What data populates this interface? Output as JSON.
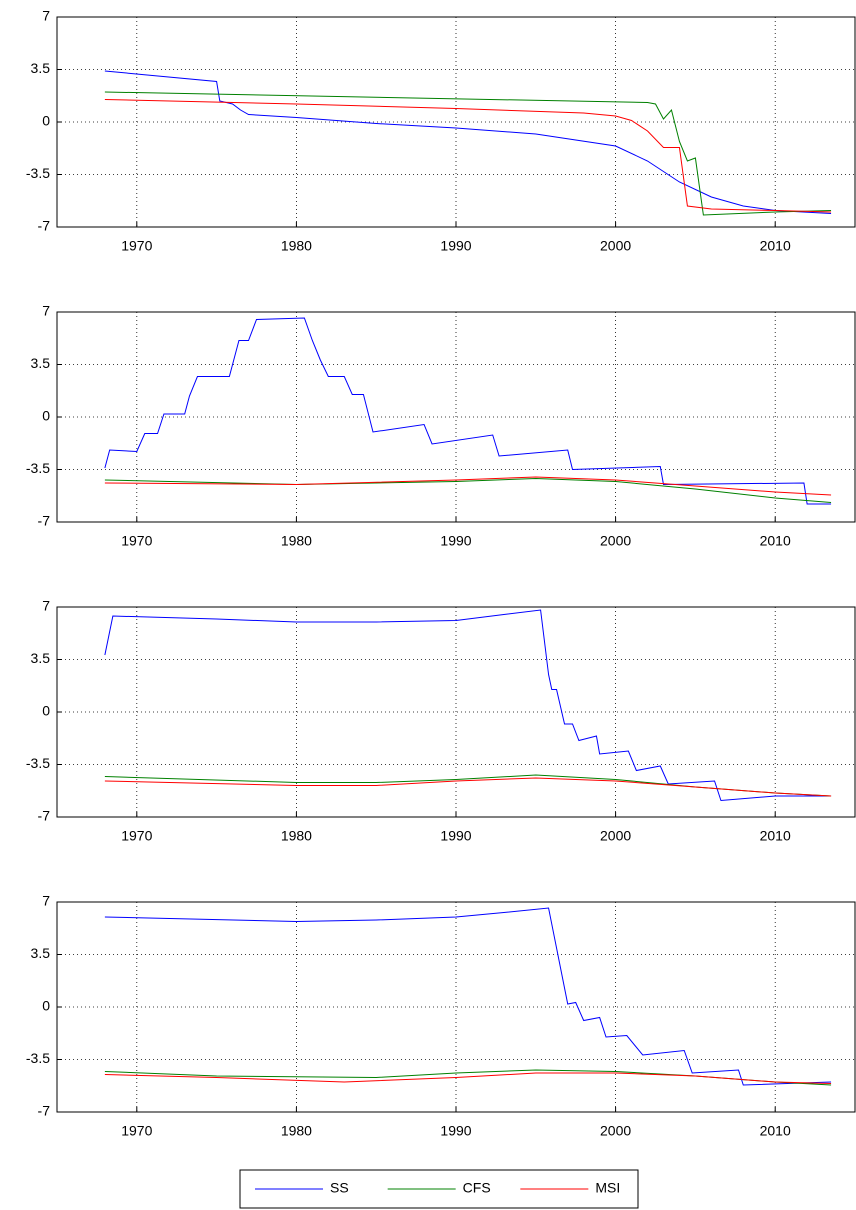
{
  "chart_data": [
    {
      "type": "line",
      "xlim": [
        1965,
        2015
      ],
      "xticks": [
        1970,
        1980,
        1990,
        2000,
        2010
      ],
      "ylim": [
        -7,
        7
      ],
      "yticks": [
        -7,
        -3.5,
        0,
        3.5,
        7
      ],
      "grid": true,
      "series": [
        {
          "name": "SS",
          "color": "#0000ff",
          "x": [
            1968,
            1975,
            1975.2,
            1976,
            1976.5,
            1977,
            1980,
            1985,
            1990,
            1995,
            2000,
            2002,
            2004,
            2006,
            2008,
            2010,
            2013.5
          ],
          "values": [
            3.4,
            2.7,
            1.4,
            1.2,
            0.8,
            0.5,
            0.3,
            -0.1,
            -0.4,
            -0.8,
            -1.6,
            -2.6,
            -4.0,
            -5.0,
            -5.6,
            -5.9,
            -6.1
          ]
        },
        {
          "name": "CFS",
          "color": "#008000",
          "x": [
            1968,
            2002,
            2002.5,
            2003,
            2003.5,
            2004,
            2004.5,
            2005,
            2005.5,
            2010,
            2013.5
          ],
          "values": [
            2.0,
            1.3,
            1.2,
            0.2,
            0.8,
            -1.3,
            -2.6,
            -2.4,
            -6.2,
            -6.0,
            -5.9
          ]
        },
        {
          "name": "MSI",
          "color": "#ff0000",
          "x": [
            1968,
            1980,
            1990,
            1998,
            2000,
            2001,
            2002,
            2003,
            2004,
            2004.5,
            2006,
            2010,
            2013.5
          ],
          "values": [
            1.5,
            1.2,
            0.9,
            0.6,
            0.4,
            0.1,
            -0.6,
            -1.7,
            -1.7,
            -5.6,
            -5.8,
            -5.9,
            -6.0
          ]
        }
      ]
    },
    {
      "type": "line",
      "xlim": [
        1965,
        2015
      ],
      "xticks": [
        1970,
        1980,
        1990,
        2000,
        2010
      ],
      "ylim": [
        -7,
        7
      ],
      "yticks": [
        -7,
        -3.5,
        0,
        3.5,
        7
      ],
      "grid": true,
      "series": [
        {
          "color": "#0000ff",
          "x": [
            1968,
            1968.3,
            1970,
            1970.5,
            1971.3,
            1971.7,
            1973,
            1973.3,
            1973.8,
            1975.8,
            1976.4,
            1977,
            1977.5,
            1980.5,
            1981,
            1981.5,
            1982,
            1983,
            1983.5,
            1984.2,
            1984.8,
            1988,
            1988.5,
            1992.3,
            1992.7,
            1997,
            1997.3,
            2002.8,
            2003,
            2011.8,
            2012,
            2013.5
          ],
          "values": [
            -3.4,
            -2.2,
            -2.3,
            -1.1,
            -1.1,
            0.2,
            0.2,
            1.4,
            2.7,
            2.7,
            5.1,
            5.1,
            6.5,
            6.6,
            5.1,
            3.8,
            2.7,
            2.7,
            1.5,
            1.5,
            -1.0,
            -0.5,
            -1.8,
            -1.2,
            -2.6,
            -2.2,
            -3.5,
            -3.3,
            -4.5,
            -4.4,
            -5.8,
            -5.8
          ]
        },
        {
          "color": "#008000",
          "x": [
            1968,
            1980,
            1990,
            1995,
            2000,
            2005,
            2010,
            2013.5
          ],
          "values": [
            -4.2,
            -4.5,
            -4.3,
            -4.1,
            -4.3,
            -4.8,
            -5.4,
            -5.7
          ]
        },
        {
          "color": "#ff0000",
          "x": [
            1968,
            1980,
            1990,
            1995,
            2000,
            2005,
            2010,
            2013.5
          ],
          "values": [
            -4.4,
            -4.5,
            -4.2,
            -4.0,
            -4.2,
            -4.6,
            -5.0,
            -5.2
          ]
        }
      ]
    },
    {
      "type": "line",
      "xlim": [
        1965,
        2015
      ],
      "xticks": [
        1970,
        1980,
        1990,
        2000,
        2010
      ],
      "ylim": [
        -7,
        7
      ],
      "yticks": [
        -7,
        -3.5,
        0,
        3.5,
        7
      ],
      "grid": true,
      "series": [
        {
          "color": "#0000ff",
          "x": [
            1968,
            1968.5,
            1975,
            1980,
            1985,
            1990,
            1993,
            1995.3,
            1995.8,
            1996,
            1996.3,
            1996.8,
            1997.3,
            1997.7,
            1998.8,
            1999,
            2000.8,
            2001.3,
            2002.8,
            2003.3,
            2006.2,
            2006.6,
            2010,
            2013.5
          ],
          "values": [
            3.8,
            6.4,
            6.2,
            6.0,
            6.0,
            6.1,
            6.5,
            6.8,
            2.5,
            1.5,
            1.5,
            -0.8,
            -0.8,
            -1.9,
            -1.6,
            -2.8,
            -2.6,
            -3.9,
            -3.6,
            -4.8,
            -4.6,
            -5.9,
            -5.6,
            -5.6
          ]
        },
        {
          "color": "#008000",
          "x": [
            1968,
            1980,
            1985,
            1990,
            1995,
            2000,
            2005,
            2010,
            2013.5
          ],
          "values": [
            -4.3,
            -4.7,
            -4.7,
            -4.5,
            -4.2,
            -4.5,
            -5.0,
            -5.4,
            -5.6
          ]
        },
        {
          "color": "#ff0000",
          "x": [
            1968,
            1980,
            1985,
            1990,
            1995,
            2000,
            2005,
            2010,
            2013.5
          ],
          "values": [
            -4.6,
            -4.9,
            -4.9,
            -4.6,
            -4.4,
            -4.6,
            -5.0,
            -5.4,
            -5.6
          ]
        }
      ]
    },
    {
      "type": "line",
      "xlim": [
        1965,
        2015
      ],
      "xticks": [
        1970,
        1980,
        1990,
        2000,
        2010
      ],
      "ylim": [
        -7,
        7
      ],
      "yticks": [
        -7,
        -3.5,
        0,
        3.5,
        7
      ],
      "grid": true,
      "series": [
        {
          "color": "#0000ff",
          "x": [
            1968,
            1980,
            1985,
            1990,
            1993,
            1995.8,
            1997,
            1997.5,
            1998,
            1999,
            1999.4,
            2000.7,
            2001.7,
            2004.3,
            2004.8,
            2007.7,
            2008,
            2013.5
          ],
          "values": [
            6.0,
            5.7,
            5.8,
            6.0,
            6.3,
            6.6,
            0.2,
            0.3,
            -0.9,
            -0.7,
            -2.0,
            -1.9,
            -3.2,
            -2.9,
            -4.4,
            -4.2,
            -5.2,
            -5.0
          ]
        },
        {
          "color": "#008000",
          "x": [
            1968,
            1975,
            1985,
            1990,
            1995,
            2000,
            2005,
            2010,
            2013.5
          ],
          "values": [
            -4.3,
            -4.6,
            -4.7,
            -4.4,
            -4.2,
            -4.3,
            -4.6,
            -5.0,
            -5.2
          ]
        },
        {
          "color": "#ff0000",
          "x": [
            1968,
            1975,
            1983,
            1990,
            1995,
            2000,
            2005,
            2010,
            2013.5
          ],
          "values": [
            -4.5,
            -4.7,
            -5.0,
            -4.7,
            -4.4,
            -4.4,
            -4.6,
            -5.0,
            -5.1
          ]
        }
      ]
    }
  ]
}
